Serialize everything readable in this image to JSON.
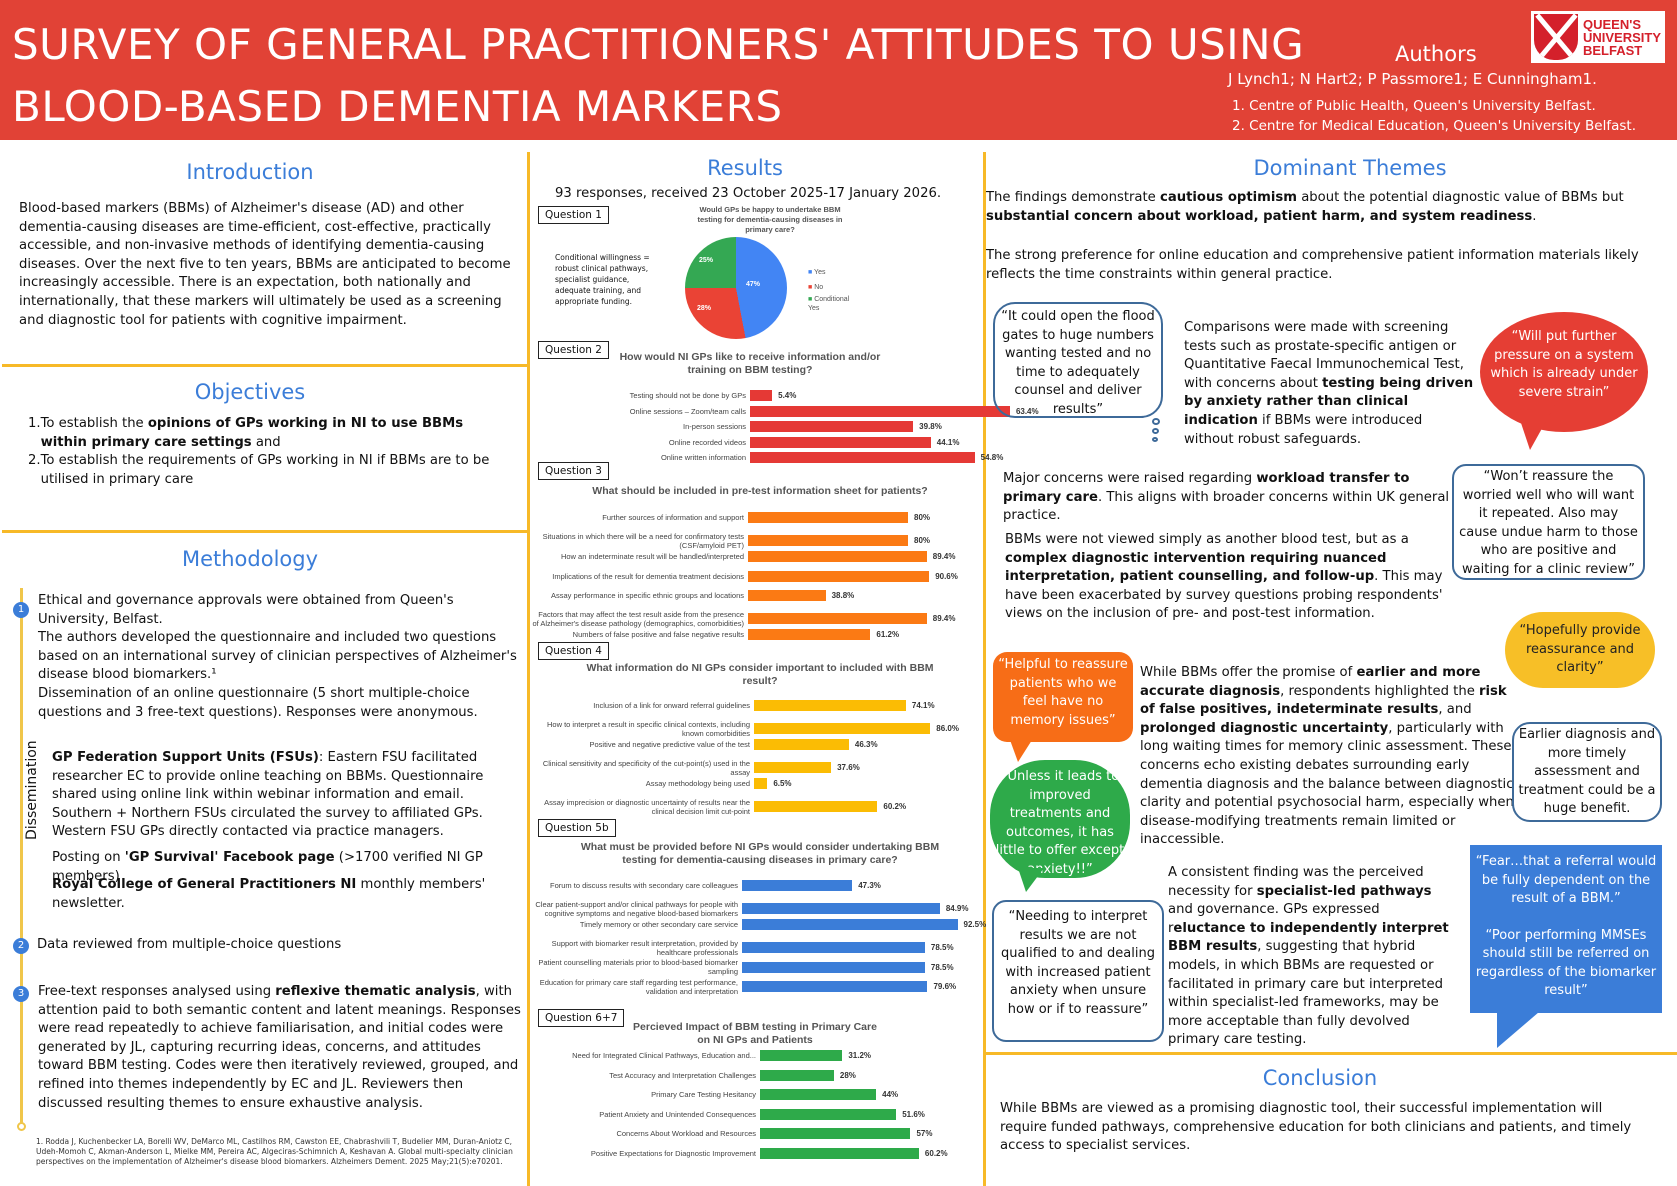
{
  "header": {
    "title_line1": "SURVEY OF GENERAL PRACTITIONERS' ATTITUDES TO USING",
    "title_line2": "BLOOD-BASED DEMENTIA MARKERS",
    "authors_heading": "Authors",
    "authors": "J Lynch1; N Hart2; P Passmore1; E Cunningham1.",
    "affiliations": [
      "1. Centre of Public Health, Queen's University Belfast.",
      "2. Centre for Medical Education, Queen's University Belfast."
    ],
    "logo": {
      "line1": "QUEEN'S",
      "line2": "UNIVERSITY",
      "line3": "BELFAST"
    }
  },
  "introduction": {
    "title": "Introduction",
    "text": "Blood-based markers (BBMs) of Alzheimer's disease (AD) and other dementia-causing diseases are time-efficient, cost-effective, practically accessible, and non-invasive methods of identifying dementia-causing diseases. Over the next five to ten years, BBMs are anticipated to become increasingly accessible. There is an expectation, both nationally and internationally, that these markers will ultimately be used as a screening and diagnostic tool for patients with cognitive impairment."
  },
  "objectives": {
    "title": "Objectives",
    "items": [
      {
        "num": "1.",
        "pre": "To establish the ",
        "bold": "opinions of GPs working in NI to use BBMs within primary care settings",
        "post": " and"
      },
      {
        "num": "2.",
        "pre": "To establish the requirements of GPs working in NI if BBMs are to be utilised in primary care",
        "bold": "",
        "post": ""
      }
    ]
  },
  "methodology": {
    "title": "Methodology",
    "step1": {
      "num": "1",
      "text": "Ethical and governance approvals were obtained from Queen's University, Belfast.\nThe authors developed the questionnaire and included two questions based on an international survey of clinician perspectives of Alzheimer's disease blood biomarkers.¹\nDissemination of an online questionnaire (5 short multiple-choice questions and 3 free-text questions). Responses were anonymous."
    },
    "dissemination_label": "Dissemination",
    "dissemination": [
      {
        "bold": "GP Federation Support Units (FSUs)",
        "text": ":  Eastern FSU facilitated researcher EC to provide online teaching on BBMs. Questionnaire shared using online link within webinar information and email. Southern + Northern FSUs circulated the survey to affiliated GPs. Western FSU GPs directly contacted via practice managers."
      },
      {
        "pre": "Posting on ",
        "bold": "'GP Survival' Facebook page",
        "text": " (>1700 verified NI GP members)"
      },
      {
        "bold": "Royal College of General Practitioners NI",
        "text": " monthly members' newsletter."
      }
    ],
    "step2": {
      "num": "2",
      "text": "Data reviewed from multiple-choice questions"
    },
    "step3": {
      "num": "3",
      "pre": "Free-text responses analysed using ",
      "bold": "reflexive thematic analysis",
      "text": ", with attention paid to both semantic content and latent meanings. Responses were read repeatedly to achieve familiarisation, and initial codes were generated by JL, capturing recurring ideas, concerns, and attitudes toward BBM testing. Codes were then iteratively reviewed, grouped, and refined into themes independently by EC and JL. Reviewers then discussed resulting themes to ensure exhaustive analysis."
    },
    "footnote": "1. Rodda J, Kuchenbecker LA, Borelli WV, DeMarco ML, Castilhos RM, Cawston EE, Chabrashvili T, Budelier MM, Duran-Aniotz C, Udeh-Momoh C, Akman-Anderson L, Mielke MM, Pereira AC, Algeciras-Schimnich A, Keshavan A. Global multi-specialty clinician perspectives on the implementation of Alzheimer's disease blood biomarkers. Alzheimers Dement. 2025 May;21(5):e70201."
  },
  "results": {
    "title": "Results",
    "subtitle": "93 responses, received 23 October 2025-17 January 2026.",
    "q1_label": "Question 1",
    "q1_note": "Conditional willingness = robust clinical pathways, specialist guidance, adequate training, and appropriate funding.",
    "q2_label": "Question 2",
    "q3_label": "Question 3",
    "q4_label": "Question 4",
    "q5_label": "Question 5b",
    "q6_label": "Question 6+7"
  },
  "chart_data": [
    {
      "type": "pie",
      "title": "Would GPs be happy to undertake BBM testing for dementia-causing diseases in primary care?",
      "categories": [
        "Yes",
        "No",
        "Conditional Yes"
      ],
      "values": [
        47,
        28,
        25
      ],
      "colors": [
        "#4285f4",
        "#ea4335",
        "#34a853"
      ],
      "legend_position": "right"
    },
    {
      "type": "bar",
      "orientation": "horizontal",
      "title": "How would NI GPs like to receive information and/or training on BBM testing?",
      "color": "#e53935",
      "categories": [
        "Testing should not be done by GPs",
        "Online sessions – Zoom/team calls",
        "In-person sessions",
        "Online recorded videos",
        "Online written information"
      ],
      "values": [
        5.4,
        63.4,
        39.8,
        44.1,
        54.8
      ],
      "labels": [
        "5.4%",
        "63.4%",
        "39.8%",
        "44.1%",
        "54.8%"
      ]
    },
    {
      "type": "bar",
      "orientation": "horizontal",
      "title": "What should be included in pre-test information sheet for patients?",
      "color": "#fb7a14",
      "categories": [
        "Further sources of information and support",
        "Situations in which there will be a need for confirmatory tests (CSF/amyloid PET)",
        "How an indeterminate result will be handled/interpreted",
        "Implications of the result for dementia treatment decisions",
        "Assay performance in specific ethnic groups and locations",
        "Factors that may affect the test result aside from the presence of Alzheimer's disease pathology (demographics, comorbidities)",
        "Numbers of false positive and false negative results"
      ],
      "values": [
        80,
        80,
        89.4,
        90.6,
        38.8,
        89.4,
        61.2
      ],
      "labels": [
        "80%",
        "80%",
        "89.4%",
        "90.6%",
        "38.8%",
        "89.4%",
        "61.2%"
      ]
    },
    {
      "type": "bar",
      "orientation": "horizontal",
      "title": "What information do NI GPs consider important to included with BBM result?",
      "color": "#fbbc04",
      "categories": [
        "Inclusion of a link for onward referral guidelines",
        "How to interpret a result in specific clinical contexts, including known comorbidities",
        "Positive and negative predictive value of the test",
        "Clinical sensitivity and specificity of the cut-point(s) used in the assay",
        "Assay methodology being used",
        "Assay imprecision or diagnostic uncertainty of results near the clinical decision limit cut-point"
      ],
      "values": [
        74.1,
        86.0,
        46.3,
        37.6,
        6.5,
        60.2
      ],
      "labels": [
        "74.1%",
        "86.0%",
        "46.3%",
        "37.6%",
        "6.5%",
        "60.2%"
      ]
    },
    {
      "type": "bar",
      "orientation": "horizontal",
      "title": "What must be provided before NI GPs would consider undertaking BBM testing for dementia-causing diseases in primary care?",
      "color": "#3b7dd8",
      "categories": [
        "Forum to discuss results with secondary care colleagues",
        "Clear patient-support and/or clinical pathways for people with cognitive symptoms and negative blood-based biomarkers",
        "Timely memory or other secondary care service",
        "Support with biomarker result interpretation, provided by healthcare professionals",
        "Patient counselling materials prior to blood-based biomarker sampling",
        "Education for primary care staff regarding test performance, validation and interpretation"
      ],
      "values": [
        47.3,
        84.9,
        92.5,
        78.5,
        78.5,
        79.6
      ],
      "labels": [
        "47.3%",
        "84.9%",
        "92.5%",
        "78.5%",
        "78.5%",
        "79.6%"
      ]
    },
    {
      "type": "bar",
      "orientation": "horizontal",
      "title": "Percieved Impact of BBM testing in Primary Care on NI GPs and Patients",
      "color": "#2eaa4a",
      "categories": [
        "Need for Integrated Clinical Pathways, Education and...",
        "Test Accuracy and Interpretation Challenges",
        "Primary Care Testing Hesitancy",
        "Patient Anxiety and Unintended Consequences",
        "Concerns About Workload and Resources",
        "Positive Expectations for Diagnostic Improvement"
      ],
      "values": [
        31.2,
        28,
        44,
        51.6,
        57,
        60.2
      ],
      "labels": [
        "31.2%",
        "28%",
        "44%",
        "51.6%",
        "57%",
        "60.2%"
      ]
    }
  ],
  "themes": {
    "title": "Dominant Themes",
    "p1": {
      "pre": "The findings demonstrate ",
      "b1": "cautious optimism",
      "mid": " about the potential diagnostic value of BBMs but ",
      "b2": "substantial concern about workload, patient harm, and system readiness",
      "post": "."
    },
    "p2": "The strong preference for online education and comprehensive patient information materials likely reflects the time constraints within general practice.",
    "p3": {
      "pre": "Comparisons were made with screening tests such as prostate-specific antigen or Quantitative Faecal Immunochemical Test, with concerns about ",
      "b1": "testing being driven by anxiety rather than clinical indication",
      "post": " if BBMs were introduced without robust safeguards."
    },
    "p4": {
      "pre": "Major concerns were raised regarding ",
      "b1": "workload transfer to primary care",
      "post": ". This aligns with broader concerns within UK general practice."
    },
    "p5": {
      "pre": "BBMs were not viewed simply as another blood test, but as a ",
      "b1": "complex diagnostic intervention requiring nuanced interpretation, patient counselling, and follow-up",
      "post": ". This may have been exacerbated by survey questions probing respondents' views on the inclusion of pre- and post-test information."
    },
    "p6": {
      "pre": "While BBMs offer the promise of ",
      "b1": "earlier and more accurate diagnosis",
      "m1": ", respondents highlighted the ",
      "b2": "risk of false positives, indeterminate results",
      "m2": ", and ",
      "b3": "prolonged diagnostic uncertainty",
      "post": ", particularly with long waiting times for memory clinic assessment. These concerns echo existing debates surrounding early dementia diagnosis and the balance between diagnostic clarity and potential psychosocial harm, especially when disease-modifying treatments remain limited or inaccessible."
    },
    "p7": {
      "pre": "A consistent finding was the perceived necessity for ",
      "b1": "specialist-led pathways",
      "m1": " and governance. GPs expressed r",
      "b2": "eluctance to independently interpret BBM results",
      "post": ", suggesting that hybrid models, in which BBMs are requested or facilitated in primary care but interpreted within specialist-led frameworks, may be more acceptable than fully devolved primary care testing."
    },
    "quotes": {
      "q1": "“It could open the flood gates to huge numbers wanting tested and no time to adequately counsel and deliver results”",
      "q2": "“Will put further pressure on a system which is already under severe strain”",
      "q3": "“Won’t reassure the worried well who will want it repeated. Also may cause undue harm to those who are positive and waiting for a clinic review”",
      "q4": "“Hopefully provide reassurance and clarity”",
      "q5": "“Helpful to reassure patients who we feel have no memory issues”",
      "q6": "Earlier diagnosis and more timely assessment and treatment could be a huge benefit.",
      "q7": "“Unless it leads to improved treatments and outcomes, it has little to offer except anxiety!!”",
      "q8": "“Fear…that a referral would be fully dependent on the result of a BBM.”",
      "q9": "“Poor performing MMSEs should still be referred on regardless of the biomarker result”",
      "q10": "“Needing to interpret results we are not qualified to and dealing with increased patient anxiety when unsure how or if to reassure”"
    }
  },
  "conclusion": {
    "title": "Conclusion",
    "text": "While BBMs are viewed as a promising diagnostic tool, their successful implementation will require funded pathways, comprehensive education for both clinicians and patients, and timely access to specialist services."
  }
}
